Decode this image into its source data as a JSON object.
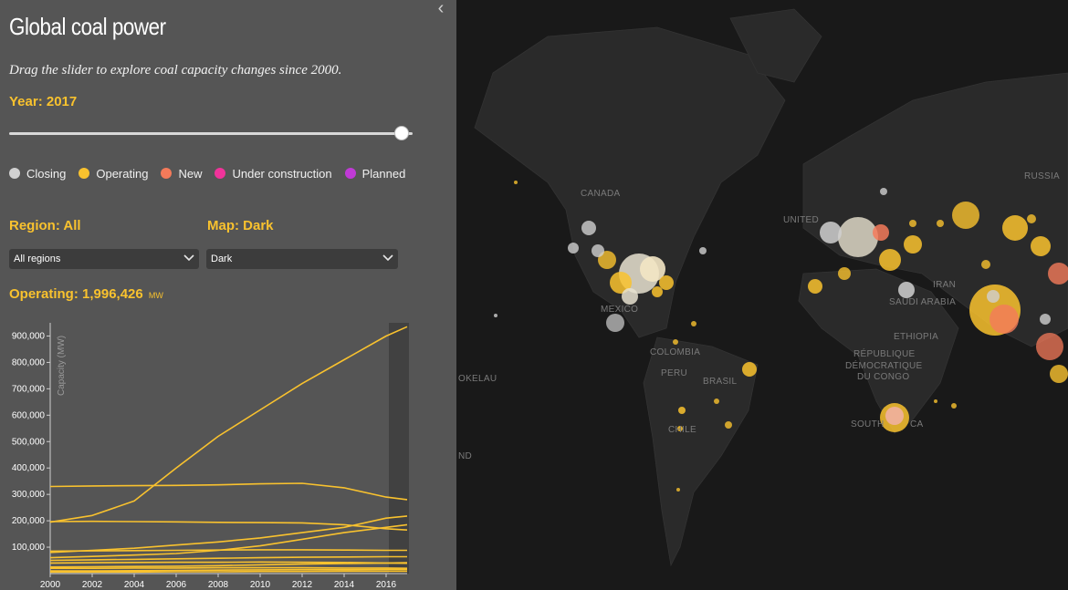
{
  "panel": {
    "title": "Global coal power",
    "subtitle": "Drag the slider to explore coal capacity changes since 2000.",
    "year_label": "Year: 2017",
    "slider": {
      "min": 2000,
      "max": 2017,
      "value": 2017
    },
    "collapse_glyph": "‹",
    "legend": [
      {
        "label": "Closing",
        "color": "#d0d0d0"
      },
      {
        "label": "Operating",
        "color": "#f9c22e"
      },
      {
        "label": "New",
        "color": "#f47a5a"
      },
      {
        "label": "Under construction",
        "color": "#f0339a"
      },
      {
        "label": "Planned",
        "color": "#c03ad6"
      }
    ],
    "region_label": "Region: All",
    "map_label": "Map: Dark",
    "region_select": {
      "value": "All regions"
    },
    "map_select": {
      "value": "Dark"
    },
    "operating_label": "Operating: 1,996,426",
    "operating_unit": "MW"
  },
  "chart_data": {
    "type": "line",
    "ylabel": "Capacity (MW)",
    "ylim": [
      0,
      950000
    ],
    "xlim": [
      2000,
      2017
    ],
    "yticks": [
      {
        "value": 100000,
        "label": "100,000"
      },
      {
        "value": 200000,
        "label": "200,000"
      },
      {
        "value": 300000,
        "label": "300,000"
      },
      {
        "value": 400000,
        "label": "400,000"
      },
      {
        "value": 500000,
        "label": "500,000"
      },
      {
        "value": 600000,
        "label": "600,000"
      },
      {
        "value": 700000,
        "label": "700,000"
      },
      {
        "value": 800000,
        "label": "800,000"
      },
      {
        "value": 900000,
        "label": "900,000"
      }
    ],
    "xticks": [
      {
        "value": 2000,
        "label": "2000"
      },
      {
        "value": 2002,
        "label": "2002"
      },
      {
        "value": 2004,
        "label": "2004"
      },
      {
        "value": 2006,
        "label": "2006"
      },
      {
        "value": 2008,
        "label": "2008"
      },
      {
        "value": 2010,
        "label": "2010"
      },
      {
        "value": 2012,
        "label": "2012"
      },
      {
        "value": 2014,
        "label": "2014"
      },
      {
        "value": 2016,
        "label": "2016"
      }
    ],
    "line_color": "#f9c22e",
    "x": [
      2000,
      2002,
      2004,
      2006,
      2008,
      2010,
      2012,
      2014,
      2016,
      2017
    ],
    "series": [
      {
        "values": [
          195000,
          220000,
          275000,
          400000,
          520000,
          620000,
          720000,
          810000,
          900000,
          935000
        ]
      },
      {
        "values": [
          330000,
          332000,
          333000,
          334000,
          336000,
          340000,
          342000,
          325000,
          290000,
          280000
        ]
      },
      {
        "values": [
          197000,
          198000,
          197000,
          196000,
          194000,
          193000,
          192000,
          185000,
          170000,
          165000
        ]
      },
      {
        "values": [
          80000,
          88000,
          96000,
          108000,
          120000,
          135000,
          155000,
          175000,
          210000,
          218000
        ]
      },
      {
        "values": [
          60000,
          65000,
          70000,
          76000,
          88000,
          105000,
          130000,
          155000,
          175000,
          185000
        ]
      },
      {
        "values": [
          85000,
          86000,
          87000,
          88000,
          89000,
          90000,
          90000,
          89000,
          88000,
          88000
        ]
      },
      {
        "values": [
          50000,
          52000,
          54000,
          56000,
          58000,
          60000,
          62000,
          63000,
          64000,
          64000
        ]
      },
      {
        "values": [
          40000,
          41000,
          42000,
          43000,
          43000,
          44000,
          43000,
          42000,
          40000,
          39000
        ]
      },
      {
        "values": [
          25000,
          26000,
          27000,
          28000,
          30000,
          33000,
          36000,
          38000,
          40000,
          41000
        ]
      },
      {
        "values": [
          20000,
          20000,
          21000,
          21000,
          22000,
          22000,
          22000,
          21000,
          21000,
          20000
        ]
      },
      {
        "values": [
          10000,
          10000,
          11000,
          12000,
          13000,
          14000,
          15000,
          15000,
          16000,
          16000
        ]
      },
      {
        "values": [
          6000,
          6000,
          6000,
          7000,
          7000,
          8000,
          8000,
          9000,
          9000,
          9000
        ]
      }
    ]
  },
  "map": {
    "labels": [
      {
        "text": "CANADA",
        "name": "map-label-canada"
      },
      {
        "text": "MEXICO",
        "name": "map-label-mexico"
      },
      {
        "text": "COLOMBIA",
        "name": "map-label-colombia"
      },
      {
        "text": "PERU",
        "name": "map-label-peru"
      },
      {
        "text": "BRASIL",
        "name": "map-label-brasil"
      },
      {
        "text": "CHILE",
        "name": "map-label-chile"
      },
      {
        "text": "UNITED",
        "name": "map-label-united"
      },
      {
        "text": "RUSSIA",
        "name": "map-label-russia"
      },
      {
        "text": "IRAN",
        "name": "map-label-iran"
      },
      {
        "text": "SAUDI ARABIA",
        "name": "map-label-saudi-arabia"
      },
      {
        "text": "ETHIOPIA",
        "name": "map-label-ethiopia"
      },
      {
        "text": "RÉPUBLIQUE",
        "name": "map-label-republique"
      },
      {
        "text": "DÉMOCRATIQUE",
        "name": "map-label-democratique"
      },
      {
        "text": "DU CONGO",
        "name": "map-label-du-congo"
      },
      {
        "text": "SOUTH",
        "name": "map-label-south"
      },
      {
        "text": "CA",
        "name": "map-label-ca"
      },
      {
        "text": "OKELAU",
        "name": "map-label-okelau"
      },
      {
        "text": "ND",
        "name": "map-label-nd"
      }
    ]
  }
}
